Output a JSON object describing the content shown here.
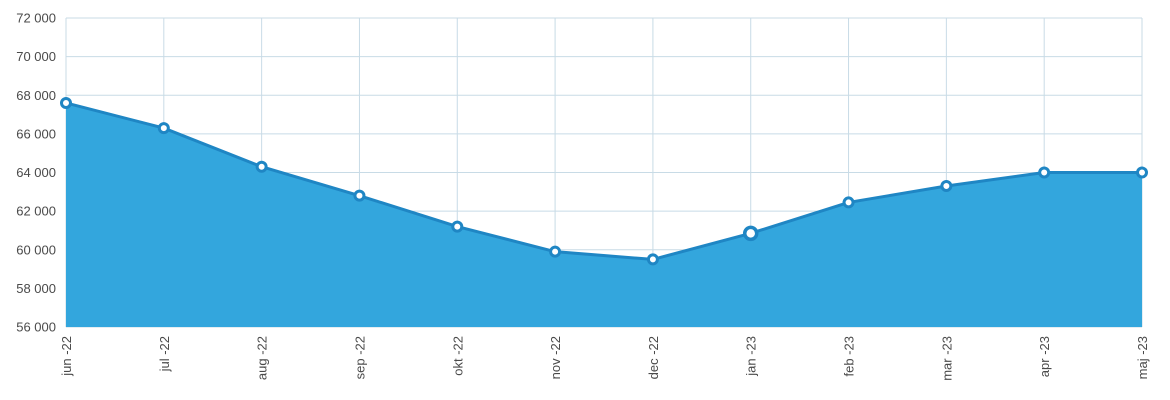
{
  "chart_data": {
    "type": "area",
    "categories": [
      "jun -22",
      "jul -22",
      "aug -22",
      "sep -22",
      "okt -22",
      "nov -22",
      "dec -22",
      "jan -23",
      "feb -23",
      "mar -23",
      "apr -23",
      "maj -23"
    ],
    "series": [
      {
        "values": [
          67600,
          66300,
          64300,
          62800,
          61200,
          59900,
          59500,
          60850,
          62450,
          63300,
          64000,
          64000
        ],
        "highlighted_index": 7
      }
    ],
    "ylim": [
      56000,
      72000
    ],
    "yticks": [
      56000,
      58000,
      60000,
      62000,
      64000,
      66000,
      68000,
      70000,
      72000
    ],
    "ytick_labels": [
      "56 000",
      "58 000",
      "60 000",
      "62 000",
      "64 000",
      "66 000",
      "68 000",
      "70 000",
      "72 000"
    ],
    "grid": true,
    "legend": "none",
    "colors": {
      "fill": "#33a6dd",
      "line": "#1f86c4",
      "marker_fill": "#ffffff",
      "grid": "#c8dbe6",
      "text": "#4a4a4a"
    }
  }
}
